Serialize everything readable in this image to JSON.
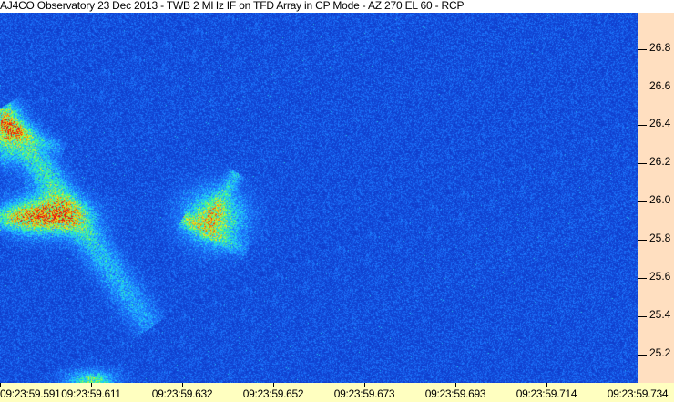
{
  "title": "AJ4CO Observatory 23 Dec 2013 - TWB 2 MHz IF on TFD Array in CP Mode - AZ 270 EL 60 - RCP",
  "chart_data": {
    "type": "heatmap",
    "title": "AJ4CO Observatory 23 Dec 2013 - TWB 2 MHz IF on TFD Array in CP Mode - AZ 270 EL 60 - RCP",
    "x_tick_labels": [
      "09:23:59.591",
      "09:23:59.611",
      "09:23:59.632",
      "09:23:59.652",
      "09:23:59.673",
      "09:23:59.693",
      "09:23:59.714",
      "09:23:59.734"
    ],
    "y_tick_labels": [
      "26.8",
      "26.6",
      "26.4",
      "26.2",
      "26.0",
      "25.8",
      "25.6",
      "25.4",
      "25.2"
    ],
    "y_ticks": [
      26.8,
      26.6,
      26.4,
      26.2,
      26.0,
      25.8,
      25.6,
      25.4,
      25.2
    ],
    "x_range": [
      "09:23:59.591",
      "09:23:59.734"
    ],
    "y_range": [
      25.05,
      26.99
    ],
    "y_axis_position": "right",
    "colormap": [
      "#0a1e8c",
      "#1040d0",
      "#1e78ff",
      "#20d0ff",
      "#40ff80",
      "#f0f020",
      "#ff8000",
      "#e01010"
    ],
    "grid": false
  },
  "colors": {
    "y_axis_bg": "#ffdfc0",
    "x_axis_bg": "#ffffc0"
  }
}
